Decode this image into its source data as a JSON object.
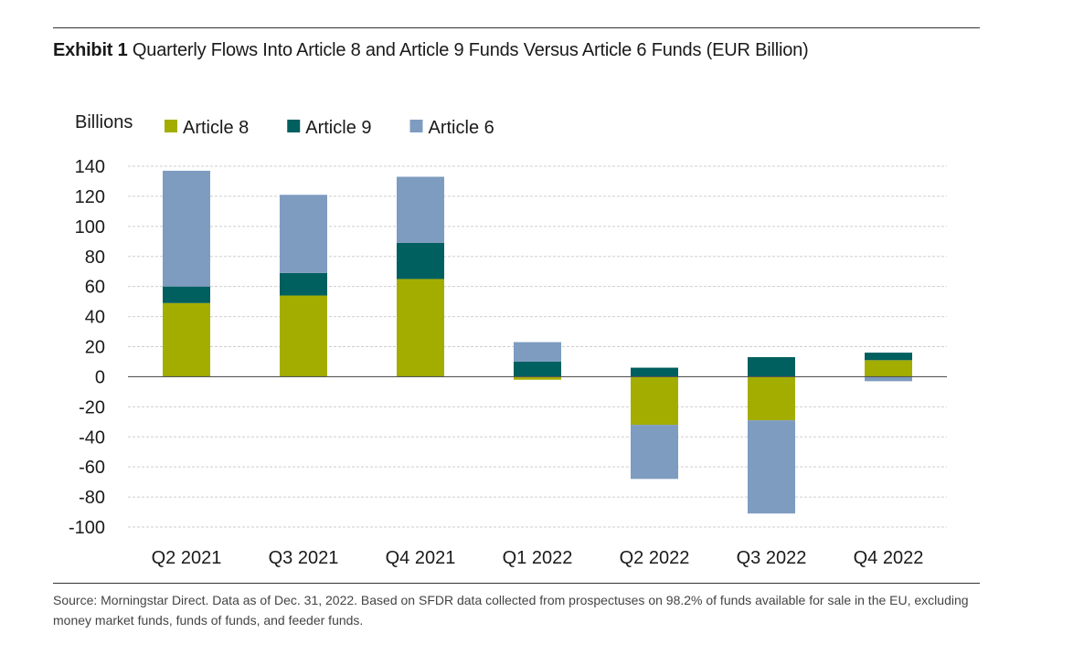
{
  "header": {
    "exhibit_label": "Exhibit 1",
    "title": "Quarterly Flows Into Article 8 and Article 9 Funds Versus Article 6 Funds (EUR Billion)"
  },
  "footer": {
    "source": "Source: Morningstar Direct. Data as of Dec. 31, 2022. Based on SFDR data collected from prospectuses on 98.2% of funds available for sale in the EU, excluding money market funds, funds of funds, and feeder funds."
  },
  "colors": {
    "article8": "#a3ad00",
    "article9": "#005f5f",
    "article6": "#7e9cc0",
    "grid": "#cfcfcf",
    "axis": "#555555"
  },
  "chart_data": {
    "type": "bar",
    "stacked": true,
    "ylabel": "Billions",
    "ylim": [
      -100,
      140
    ],
    "yticks": [
      140,
      120,
      100,
      80,
      60,
      40,
      20,
      0,
      -20,
      -40,
      -60,
      -80,
      -100
    ],
    "grid": true,
    "legend_position": "top-left",
    "categories": [
      "Q2 2021",
      "Q3 2021",
      "Q4 2021",
      "Q1 2022",
      "Q2 2022",
      "Q3 2022",
      "Q4 2022"
    ],
    "series": [
      {
        "name": "Article 8",
        "color_key": "article8",
        "values": [
          49,
          54,
          65,
          -2,
          -32,
          -29,
          11
        ]
      },
      {
        "name": "Article 9",
        "color_key": "article9",
        "values": [
          11,
          15,
          24,
          10,
          6,
          13,
          5
        ]
      },
      {
        "name": "Article 6",
        "color_key": "article6",
        "values": [
          77,
          52,
          44,
          13,
          -36,
          -62,
          -3
        ]
      }
    ]
  }
}
